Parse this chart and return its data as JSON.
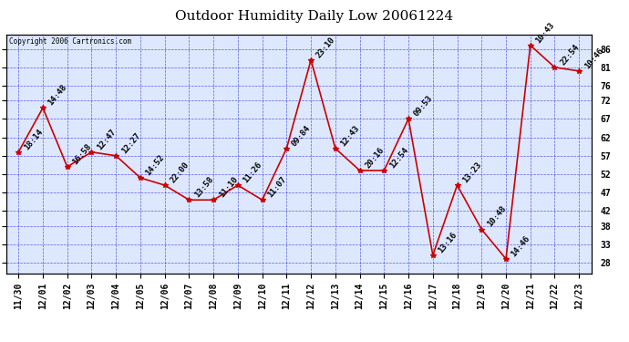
{
  "title": "Outdoor Humidity Daily Low 20061224",
  "copyright": "Copyright 2006 Cartronics.com",
  "x_labels": [
    "11/30",
    "12/01",
    "12/02",
    "12/03",
    "12/04",
    "12/05",
    "12/06",
    "12/07",
    "12/08",
    "12/09",
    "12/10",
    "12/11",
    "12/12",
    "12/13",
    "12/14",
    "12/15",
    "12/16",
    "12/17",
    "12/18",
    "12/19",
    "12/20",
    "12/21",
    "12/22",
    "12/23"
  ],
  "y_values": [
    58,
    70,
    54,
    58,
    57,
    51,
    49,
    45,
    45,
    49,
    45,
    59,
    83,
    59,
    53,
    53,
    67,
    30,
    49,
    37,
    29,
    87,
    81,
    80
  ],
  "point_labels": [
    "18:14",
    "14:48",
    "16:58",
    "12:47",
    "12:27",
    "14:52",
    "22:00",
    "13:58",
    "11:10",
    "11:26",
    "11:07",
    "09:84",
    "23:10",
    "12:43",
    "20:16",
    "12:54",
    "09:53",
    "13:16",
    "13:23",
    "10:48",
    "14:46",
    "10:43",
    "22:54",
    "10:46"
  ],
  "ylim": [
    25,
    90
  ],
  "yticks": [
    28,
    33,
    38,
    42,
    47,
    52,
    57,
    62,
    67,
    72,
    76,
    81,
    86
  ],
  "line_color": "#cc0000",
  "marker_color": "#cc0000",
  "bg_color": "#ffffff",
  "plot_bg": "#dde8ff",
  "grid_color": "#0000cc",
  "title_fontsize": 11,
  "axis_label_fontsize": 7,
  "point_label_fontsize": 6.5
}
